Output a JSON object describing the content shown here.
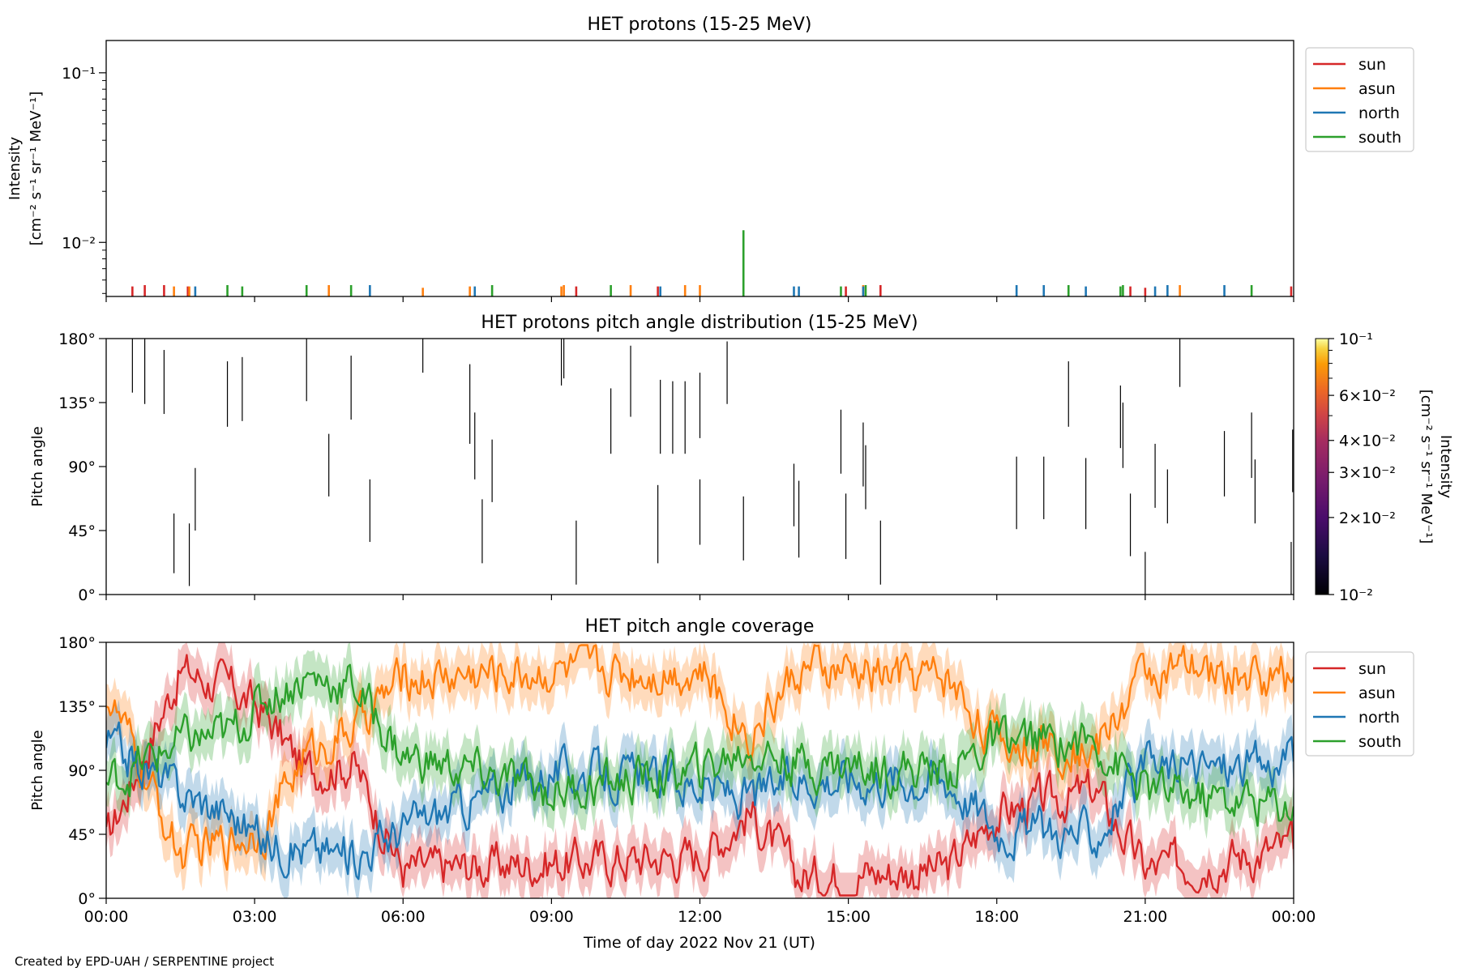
{
  "figure": {
    "footer": "Created by EPD-UAH / SERPENTINE project",
    "xlabel": "Time of day 2022 Nov 21 (UT)",
    "x_ticks": [
      "00:00",
      "03:00",
      "06:00",
      "09:00",
      "12:00",
      "15:00",
      "18:00",
      "21:00",
      "00:00"
    ]
  },
  "colors": {
    "sun": "#d62728",
    "asun": "#ff7f0e",
    "north": "#1f77b4",
    "south": "#2ca02c"
  },
  "chart_data": [
    {
      "type": "bar",
      "title": "HET protons (15-25 MeV)",
      "ylabel_line1": "Intensity",
      "ylabel_line2": "[cm⁻² s⁻¹ sr⁻¹ MeV⁻¹]",
      "y_scale": "log",
      "ylim": [
        0.0048,
        0.155
      ],
      "y_ticks": [
        "10⁻¹",
        "10⁻²"
      ],
      "xlim_hours": [
        0,
        24
      ],
      "legend": [
        "sun",
        "asun",
        "north",
        "south"
      ],
      "legend_position": "outside-right",
      "series": [
        {
          "name": "sun",
          "events": [
            [
              0.53,
              0.0055
            ],
            [
              0.78,
              0.0056
            ],
            [
              1.17,
              0.0056
            ],
            [
              1.65,
              0.0055
            ],
            [
              9.5,
              0.0055
            ],
            [
              11.15,
              0.0055
            ],
            [
              14.95,
              0.0055
            ],
            [
              15.65,
              0.0056
            ],
            [
              20.7,
              0.0055
            ],
            [
              21.0,
              0.0054
            ],
            [
              23.95,
              0.0055
            ]
          ]
        },
        {
          "name": "asun",
          "events": [
            [
              1.37,
              0.0055
            ],
            [
              1.68,
              0.0055
            ],
            [
              4.5,
              0.0056
            ],
            [
              6.4,
              0.0054
            ],
            [
              7.35,
              0.0055
            ],
            [
              9.2,
              0.0055
            ],
            [
              9.25,
              0.0056
            ],
            [
              10.6,
              0.0056
            ],
            [
              11.7,
              0.0056
            ],
            [
              12.0,
              0.0056
            ],
            [
              15.3,
              0.0056
            ],
            [
              21.7,
              0.0056
            ]
          ]
        },
        {
          "name": "north",
          "events": [
            [
              1.8,
              0.0055
            ],
            [
              5.33,
              0.0056
            ],
            [
              7.45,
              0.0055
            ],
            [
              11.2,
              0.0055
            ],
            [
              13.9,
              0.0055
            ],
            [
              14.0,
              0.0055
            ],
            [
              15.3,
              0.0055
            ],
            [
              18.4,
              0.0056
            ],
            [
              18.95,
              0.0056
            ],
            [
              19.8,
              0.0055
            ],
            [
              21.2,
              0.0055
            ],
            [
              21.45,
              0.0056
            ],
            [
              22.6,
              0.0056
            ]
          ]
        },
        {
          "name": "south",
          "events": [
            [
              2.45,
              0.0056
            ],
            [
              2.75,
              0.0055
            ],
            [
              4.05,
              0.0056
            ],
            [
              4.95,
              0.0056
            ],
            [
              7.8,
              0.0056
            ],
            [
              10.2,
              0.0056
            ],
            [
              12.88,
              0.0118
            ],
            [
              14.85,
              0.0055
            ],
            [
              15.35,
              0.0056
            ],
            [
              19.45,
              0.0056
            ],
            [
              20.5,
              0.0055
            ],
            [
              20.55,
              0.0056
            ],
            [
              23.15,
              0.0056
            ]
          ]
        }
      ]
    },
    {
      "type": "heatmap",
      "title": "HET protons pitch angle distribution (15-25 MeV)",
      "ylabel": "Pitch angle",
      "ylim": [
        0,
        180
      ],
      "y_ticks": [
        "0°",
        "45°",
        "90°",
        "135°",
        "180°"
      ],
      "xlim_hours": [
        0,
        24
      ],
      "colorbar": {
        "label_line1": "Intensity",
        "label_line2": "[cm⁻² s⁻¹ sr⁻¹ MeV⁻¹]",
        "scale": "log",
        "range": [
          0.01,
          0.1
        ],
        "tick_labels": [
          "10⁻¹",
          "6×10⁻²",
          "4×10⁻²",
          "3×10⁻²",
          "2×10⁻²",
          "10⁻²"
        ]
      },
      "segments": [
        [
          0.53,
          142,
          180
        ],
        [
          0.78,
          134,
          180
        ],
        [
          1.17,
          127,
          172
        ],
        [
          1.37,
          15,
          57
        ],
        [
          1.68,
          6,
          50
        ],
        [
          1.8,
          45,
          89
        ],
        [
          2.45,
          118,
          164
        ],
        [
          2.75,
          122,
          167
        ],
        [
          4.05,
          136,
          180
        ],
        [
          4.5,
          69,
          113
        ],
        [
          4.95,
          123,
          168
        ],
        [
          5.33,
          37,
          81
        ],
        [
          6.4,
          156,
          180
        ],
        [
          7.35,
          106,
          162
        ],
        [
          7.45,
          81,
          128
        ],
        [
          7.6,
          22,
          67
        ],
        [
          7.8,
          65,
          109
        ],
        [
          9.2,
          147,
          180
        ],
        [
          9.25,
          152,
          180
        ],
        [
          9.5,
          7,
          52
        ],
        [
          10.2,
          99,
          145
        ],
        [
          10.6,
          125,
          175
        ],
        [
          11.15,
          22,
          77
        ],
        [
          11.2,
          99,
          151
        ],
        [
          11.45,
          99,
          150
        ],
        [
          11.7,
          99,
          150
        ],
        [
          12.0,
          35,
          81
        ],
        [
          12.0,
          110,
          156
        ],
        [
          12.55,
          134,
          178
        ],
        [
          12.88,
          24,
          69
        ],
        [
          13.9,
          48,
          92
        ],
        [
          14.0,
          26,
          80
        ],
        [
          14.85,
          85,
          130
        ],
        [
          14.95,
          25,
          71
        ],
        [
          15.3,
          76,
          121
        ],
        [
          15.35,
          60,
          105
        ],
        [
          15.65,
          7,
          52
        ],
        [
          18.4,
          46,
          97
        ],
        [
          18.95,
          53,
          97
        ],
        [
          19.45,
          118,
          164
        ],
        [
          19.8,
          46,
          96
        ],
        [
          20.5,
          103,
          147
        ],
        [
          20.55,
          89,
          135
        ],
        [
          20.7,
          27,
          71
        ],
        [
          21.0,
          0,
          30
        ],
        [
          21.2,
          61,
          106
        ],
        [
          21.45,
          50,
          88
        ],
        [
          21.7,
          146,
          180
        ],
        [
          22.6,
          69,
          115
        ],
        [
          23.15,
          82,
          128
        ],
        [
          23.22,
          50,
          95
        ],
        [
          23.95,
          0,
          37
        ],
        [
          23.98,
          72,
          116
        ]
      ]
    },
    {
      "type": "line",
      "title": "HET pitch angle coverage",
      "ylabel": "Pitch angle",
      "ylim": [
        0,
        180
      ],
      "y_ticks": [
        "0°",
        "45°",
        "90°",
        "135°",
        "180°"
      ],
      "xlim_hours": [
        0,
        24
      ],
      "legend": [
        "sun",
        "asun",
        "north",
        "south"
      ],
      "legend_position": "outside-right",
      "series": [
        {
          "name": "sun",
          "x": [
            0,
            1.5,
            2.5,
            3.2,
            4,
            5,
            6,
            9,
            12,
            13,
            14,
            17,
            18,
            20,
            21,
            24
          ],
          "y": [
            40,
            160,
            148,
            130,
            90,
            95,
            20,
            25,
            30,
            60,
            15,
            20,
            60,
            75,
            20,
            35
          ],
          "band": 16
        },
        {
          "name": "asun",
          "x": [
            0,
            1.5,
            2.5,
            3.2,
            4,
            5,
            6,
            9,
            12,
            13,
            14,
            17,
            18,
            20,
            21,
            24
          ],
          "y": [
            145,
            30,
            40,
            50,
            100,
            120,
            155,
            160,
            160,
            115,
            160,
            155,
            110,
            105,
            160,
            155
          ],
          "band": 16
        },
        {
          "name": "north",
          "x": [
            0,
            1.5,
            2.5,
            3.2,
            4,
            5,
            6,
            9,
            12,
            13,
            14,
            17,
            18,
            20,
            21,
            24
          ],
          "y": [
            110,
            75,
            60,
            40,
            35,
            30,
            50,
            90,
            80,
            70,
            85,
            85,
            50,
            45,
            90,
            95
          ],
          "band": 16
        },
        {
          "name": "south",
          "x": [
            0,
            1.5,
            2.5,
            3.2,
            4,
            5,
            6,
            9,
            12,
            13,
            14,
            17,
            18,
            20,
            21,
            24
          ],
          "y": [
            80,
            110,
            115,
            140,
            155,
            150,
            100,
            75,
            90,
            105,
            95,
            90,
            110,
            110,
            75,
            65
          ],
          "band": 16
        }
      ]
    }
  ]
}
